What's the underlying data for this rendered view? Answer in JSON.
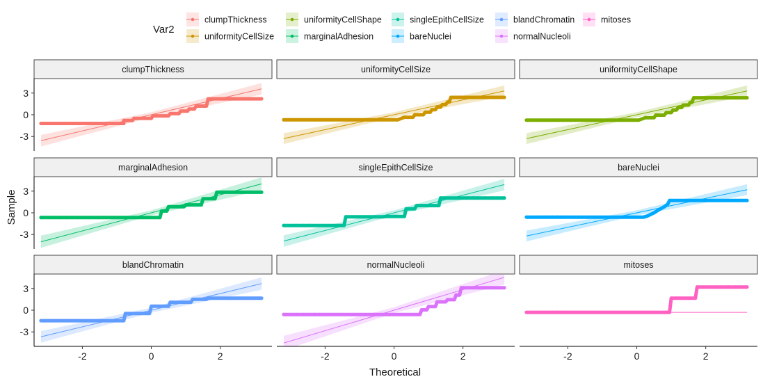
{
  "chart_data": {
    "type": "scatter",
    "subtype": "qq-plot-faceted",
    "xlabel": "Theoretical",
    "ylabel": "Sample",
    "legend": {
      "title": "Var2",
      "position": "top"
    },
    "x_ticks": [
      -2,
      0,
      2
    ],
    "y_ticks": [
      3,
      0,
      -3
    ],
    "xlim": [
      -3.4,
      3.5
    ],
    "ylim": [
      -5,
      5
    ],
    "facets": [
      {
        "name": "clumpThickness",
        "color": "#F8766D",
        "line": {
          "slope": 1.12,
          "intercept": 0.0
        },
        "band": [
          0.8,
          0.35,
          0.8
        ],
        "points": [
          [
            -3.2,
            -1.2
          ],
          [
            -2.85,
            -1.2
          ],
          [
            -2.65,
            -1.2
          ],
          [
            -2.45,
            -1.2
          ],
          [
            -2.3,
            -1.2
          ],
          [
            -2.15,
            -1.2
          ],
          [
            -0.8,
            -1.2
          ],
          [
            -0.8,
            -0.8
          ],
          [
            -0.55,
            -0.8
          ],
          [
            -0.5,
            -0.5
          ],
          [
            0.0,
            -0.5
          ],
          [
            0.05,
            -0.15
          ],
          [
            0.5,
            -0.15
          ],
          [
            0.55,
            0.15
          ],
          [
            0.8,
            0.15
          ],
          [
            0.85,
            0.5
          ],
          [
            1.05,
            0.5
          ],
          [
            1.1,
            0.8
          ],
          [
            1.25,
            0.8
          ],
          [
            1.3,
            1.2
          ],
          [
            1.6,
            1.2
          ],
          [
            1.65,
            2.2
          ],
          [
            2.3,
            2.2
          ],
          [
            2.45,
            2.2
          ],
          [
            2.65,
            2.2
          ],
          [
            2.85,
            2.2
          ],
          [
            3.2,
            2.2
          ]
        ]
      },
      {
        "name": "uniformityCellSize",
        "color": "#CD9600",
        "line": {
          "slope": 1.03,
          "intercept": 0.0
        },
        "band": [
          0.75,
          0.35,
          0.75
        ],
        "points": [
          [
            -3.2,
            -0.7
          ],
          [
            -2.85,
            -0.7
          ],
          [
            -2.65,
            -0.7
          ],
          [
            -2.45,
            -0.7
          ],
          [
            -2.3,
            -0.7
          ],
          [
            -2.15,
            -0.7
          ],
          [
            0.1,
            -0.7
          ],
          [
            0.3,
            -0.35
          ],
          [
            0.55,
            -0.35
          ],
          [
            0.6,
            0.0
          ],
          [
            0.85,
            0.0
          ],
          [
            0.9,
            0.35
          ],
          [
            1.05,
            0.35
          ],
          [
            1.1,
            0.7
          ],
          [
            1.2,
            0.7
          ],
          [
            1.25,
            1.05
          ],
          [
            1.35,
            1.05
          ],
          [
            1.4,
            1.4
          ],
          [
            1.5,
            1.4
          ],
          [
            1.55,
            1.75
          ],
          [
            1.6,
            1.75
          ],
          [
            1.65,
            2.4
          ],
          [
            2.3,
            2.4
          ],
          [
            2.45,
            2.4
          ],
          [
            2.65,
            2.4
          ],
          [
            2.85,
            2.4
          ],
          [
            3.2,
            2.4
          ]
        ]
      },
      {
        "name": "uniformityCellShape",
        "color": "#7CAE00",
        "line": {
          "slope": 1.03,
          "intercept": 0.0
        },
        "band": [
          0.75,
          0.35,
          0.75
        ],
        "points": [
          [
            -3.2,
            -0.75
          ],
          [
            -2.85,
            -0.75
          ],
          [
            -2.65,
            -0.75
          ],
          [
            -2.45,
            -0.75
          ],
          [
            -2.3,
            -0.75
          ],
          [
            -2.15,
            -0.75
          ],
          [
            0.05,
            -0.75
          ],
          [
            0.25,
            -0.4
          ],
          [
            0.5,
            -0.4
          ],
          [
            0.55,
            -0.05
          ],
          [
            0.8,
            -0.05
          ],
          [
            0.85,
            0.3
          ],
          [
            1.0,
            0.3
          ],
          [
            1.05,
            0.65
          ],
          [
            1.15,
            0.65
          ],
          [
            1.2,
            1.0
          ],
          [
            1.3,
            1.0
          ],
          [
            1.35,
            1.35
          ],
          [
            1.5,
            1.35
          ],
          [
            1.55,
            1.7
          ],
          [
            1.6,
            1.7
          ],
          [
            1.65,
            2.35
          ],
          [
            2.3,
            2.35
          ],
          [
            2.45,
            2.35
          ],
          [
            2.65,
            2.35
          ],
          [
            2.85,
            2.35
          ],
          [
            3.2,
            2.35
          ]
        ]
      },
      {
        "name": "marginalAdhesion",
        "color": "#00BE67",
        "line": {
          "slope": 1.25,
          "intercept": 0.0
        },
        "band": [
          0.85,
          0.35,
          0.9
        ],
        "points": [
          [
            -3.2,
            -0.65
          ],
          [
            -2.85,
            -0.65
          ],
          [
            -2.65,
            -0.65
          ],
          [
            -2.45,
            -0.65
          ],
          [
            -2.3,
            -0.65
          ],
          [
            -2.15,
            -0.65
          ],
          [
            0.25,
            -0.65
          ],
          [
            0.3,
            0.25
          ],
          [
            0.45,
            0.25
          ],
          [
            0.5,
            0.85
          ],
          [
            0.95,
            0.85
          ],
          [
            1.0,
            1.1
          ],
          [
            1.45,
            1.1
          ],
          [
            1.5,
            1.95
          ],
          [
            1.85,
            1.95
          ],
          [
            1.9,
            2.85
          ],
          [
            2.3,
            2.85
          ],
          [
            2.45,
            2.85
          ],
          [
            2.65,
            2.85
          ],
          [
            2.85,
            2.85
          ],
          [
            3.2,
            2.85
          ]
        ]
      },
      {
        "name": "singleEpithCellSize",
        "color": "#00C19A",
        "line": {
          "slope": 1.22,
          "intercept": 0.0
        },
        "band": [
          0.8,
          0.35,
          0.8
        ],
        "points": [
          [
            -3.2,
            -1.75
          ],
          [
            -2.85,
            -1.75
          ],
          [
            -2.65,
            -1.75
          ],
          [
            -2.45,
            -1.75
          ],
          [
            -1.45,
            -1.75
          ],
          [
            -1.4,
            -0.55
          ],
          [
            -0.3,
            -0.55
          ],
          [
            -0.2,
            -0.5
          ],
          [
            0.3,
            -0.5
          ],
          [
            0.35,
            0.55
          ],
          [
            0.6,
            0.55
          ],
          [
            0.65,
            1.0
          ],
          [
            1.3,
            1.0
          ],
          [
            1.35,
            2.05
          ],
          [
            2.3,
            2.05
          ],
          [
            2.45,
            2.05
          ],
          [
            2.65,
            2.05
          ],
          [
            2.85,
            2.05
          ],
          [
            3.2,
            2.05
          ]
        ]
      },
      {
        "name": "bareNuclei",
        "color": "#00A9FF",
        "line": {
          "slope": 1.0,
          "intercept": 0.0
        },
        "band": [
          0.75,
          0.35,
          0.75
        ],
        "points": [
          [
            -3.2,
            -0.6
          ],
          [
            -2.85,
            -0.6
          ],
          [
            -2.65,
            -0.6
          ],
          [
            -2.45,
            -0.6
          ],
          [
            -2.3,
            -0.6
          ],
          [
            -2.15,
            -0.6
          ],
          [
            0.2,
            -0.6
          ],
          [
            0.3,
            -0.45
          ],
          [
            0.5,
            0.0
          ],
          [
            0.65,
            0.45
          ],
          [
            0.8,
            0.85
          ],
          [
            0.9,
            1.2
          ],
          [
            0.95,
            1.7
          ],
          [
            2.3,
            1.7
          ],
          [
            2.45,
            1.7
          ],
          [
            2.65,
            1.7
          ],
          [
            2.85,
            1.7
          ],
          [
            3.2,
            1.7
          ]
        ]
      },
      {
        "name": "blandChromatin",
        "color": "#619CFF",
        "line": {
          "slope": 1.15,
          "intercept": 0.0
        },
        "band": [
          0.8,
          0.35,
          0.85
        ],
        "points": [
          [
            -3.2,
            -1.45
          ],
          [
            -2.85,
            -1.45
          ],
          [
            -2.65,
            -1.45
          ],
          [
            -2.45,
            -1.45
          ],
          [
            -2.3,
            -1.45
          ],
          [
            -2.15,
            -1.45
          ],
          [
            -1.3,
            -1.45
          ],
          [
            -0.8,
            -1.45
          ],
          [
            -0.75,
            -0.45
          ],
          [
            -0.05,
            -0.45
          ],
          [
            0.0,
            0.55
          ],
          [
            0.5,
            0.55
          ],
          [
            0.55,
            1.1
          ],
          [
            1.15,
            1.1
          ],
          [
            1.2,
            1.5
          ],
          [
            1.6,
            1.5
          ],
          [
            1.65,
            1.65
          ],
          [
            2.3,
            1.65
          ],
          [
            2.45,
            1.65
          ],
          [
            2.65,
            1.65
          ],
          [
            2.85,
            1.65
          ],
          [
            3.2,
            1.65
          ]
        ]
      },
      {
        "name": "normalNucleoli",
        "color": "#DB72FB",
        "line": {
          "slope": 1.42,
          "intercept": 0.0
        },
        "band": [
          1.0,
          0.4,
          1.0
        ],
        "points": [
          [
            -3.2,
            -0.6
          ],
          [
            -2.85,
            -0.6
          ],
          [
            -2.65,
            -0.6
          ],
          [
            -2.45,
            -0.6
          ],
          [
            -2.3,
            -0.6
          ],
          [
            -2.15,
            -0.6
          ],
          [
            0.75,
            -0.6
          ],
          [
            0.8,
            0.05
          ],
          [
            0.95,
            0.05
          ],
          [
            1.0,
            0.5
          ],
          [
            1.2,
            0.5
          ],
          [
            1.25,
            1.15
          ],
          [
            1.5,
            1.15
          ],
          [
            1.55,
            1.45
          ],
          [
            1.75,
            1.45
          ],
          [
            1.8,
            2.1
          ],
          [
            1.9,
            2.1
          ],
          [
            1.95,
            3.1
          ],
          [
            2.3,
            3.1
          ],
          [
            2.45,
            3.1
          ],
          [
            2.65,
            3.1
          ],
          [
            2.85,
            3.1
          ],
          [
            3.2,
            3.1
          ]
        ]
      },
      {
        "name": "mitoses",
        "color": "#FF61C3",
        "line": {
          "slope": 0.0,
          "intercept": -0.3
        },
        "band": [
          0.0,
          0.0,
          0.0
        ],
        "points": [
          [
            -3.2,
            -0.3
          ],
          [
            -2.85,
            -0.3
          ],
          [
            -2.65,
            -0.3
          ],
          [
            -2.45,
            -0.3
          ],
          [
            -2.3,
            -0.3
          ],
          [
            -2.15,
            -0.3
          ],
          [
            0.95,
            -0.3
          ],
          [
            1.0,
            1.65
          ],
          [
            1.7,
            1.65
          ],
          [
            1.75,
            3.2
          ],
          [
            2.3,
            3.2
          ],
          [
            2.45,
            3.2
          ],
          [
            2.65,
            3.2
          ],
          [
            2.85,
            3.2
          ],
          [
            3.2,
            3.2
          ]
        ]
      }
    ]
  }
}
